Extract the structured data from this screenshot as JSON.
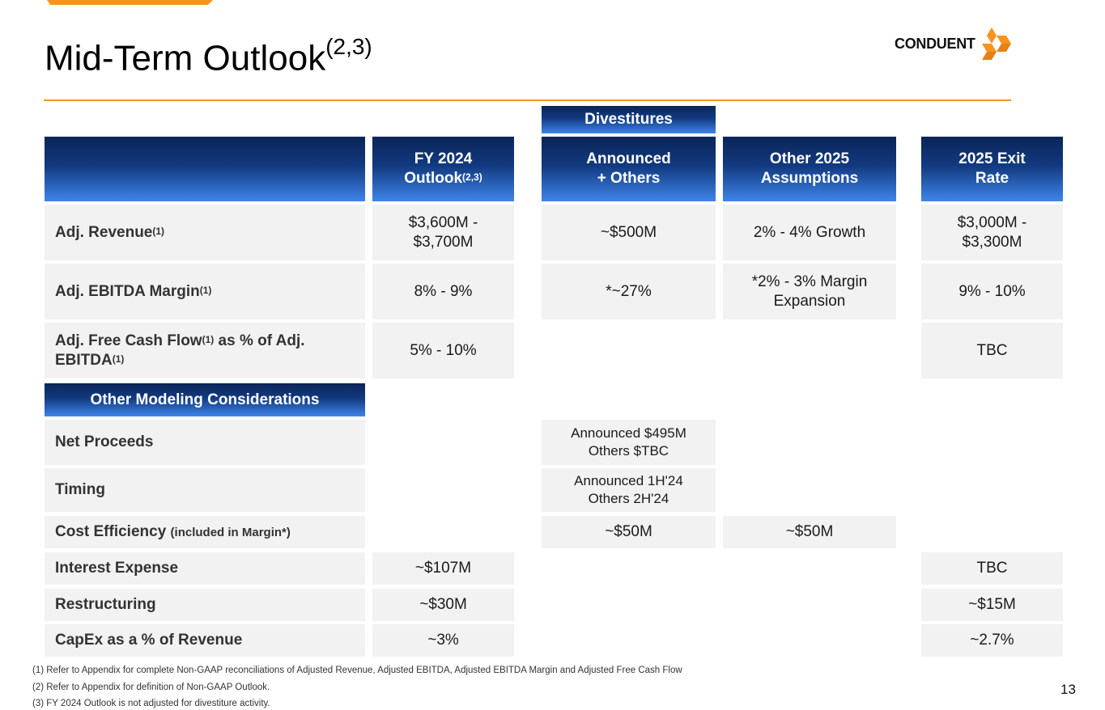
{
  "title": {
    "main": "Mid-Term Outlook",
    "sup": "(2,3)"
  },
  "logo": {
    "text": "CONDUENT",
    "icon": "conduent-logo-icon",
    "color": "#f7941d"
  },
  "colors": {
    "accent": "#f7941d",
    "header_dark": "#0a2558",
    "header_light": "#3f85ea",
    "cell_bg": "#f2f2f2"
  },
  "table": {
    "group_header": "Divestitures",
    "columns": {
      "fy2024": {
        "label": "FY 2024",
        "label2": "Outlook",
        "sup": "(2,3)"
      },
      "announced": {
        "label": "Announced",
        "label2": "+ Others"
      },
      "other2025": {
        "label": "Other 2025",
        "label2": "Assumptions"
      },
      "exit2025": {
        "label": "2025 Exit",
        "label2": "Rate"
      }
    },
    "rows": {
      "revenue": {
        "label": "Adj. Revenue",
        "sup": "(1)",
        "fy2024_l1": "$3,600M -",
        "fy2024_l2": "$3,700M",
        "announced": "~$500M",
        "other2025": "2% - 4% Growth",
        "exit2025_l1": "$3,000M -",
        "exit2025_l2": "$3,300M"
      },
      "ebitda": {
        "label": "Adj. EBITDA Margin",
        "sup": "(1)",
        "fy2024": "8% - 9%",
        "announced": "*~27%",
        "other2025_l1": "*2% - 3% Margin",
        "other2025_l2": "Expansion",
        "exit2025": "9% - 10%"
      },
      "fcf": {
        "label_a": "Adj. Free Cash Flow",
        "sup_a": "(1)",
        "label_b": " as % of Adj.",
        "label_c": "EBITDA",
        "sup_c": "(1)",
        "fy2024": "5% - 10%",
        "exit2025": "TBC"
      }
    },
    "other_header": "Other Modeling Considerations",
    "other_rows": {
      "net_proceeds": {
        "label": "Net Proceeds",
        "announced_l1": "Announced $495M",
        "announced_l2": "Others $TBC"
      },
      "timing": {
        "label": "Timing",
        "announced_l1": "Announced 1H'24",
        "announced_l2": "Others 2H'24"
      },
      "cost_efficiency": {
        "label": "Cost Efficiency",
        "note": "(included in Margin*)",
        "announced": "~$50M",
        "other2025": "~$50M"
      },
      "interest": {
        "label": "Interest Expense",
        "fy2024": "~$107M",
        "exit2025": "TBC"
      },
      "restructuring": {
        "label": "Restructuring",
        "fy2024": "~$30M",
        "exit2025": "~$15M"
      },
      "capex": {
        "label": "CapEx as a % of Revenue",
        "fy2024": "~3%",
        "exit2025": "~2.7%"
      }
    }
  },
  "footnotes": [
    "(1)  Refer to Appendix for complete Non-GAAP reconciliations of Adjusted Revenue, Adjusted EBITDA, Adjusted EBITDA Margin and Adjusted Free Cash Flow",
    "(2)  Refer to Appendix for definition of Non-GAAP Outlook.",
    "(3)  FY 2024 Outlook is not adjusted for divestiture activity."
  ],
  "page_number": "13"
}
